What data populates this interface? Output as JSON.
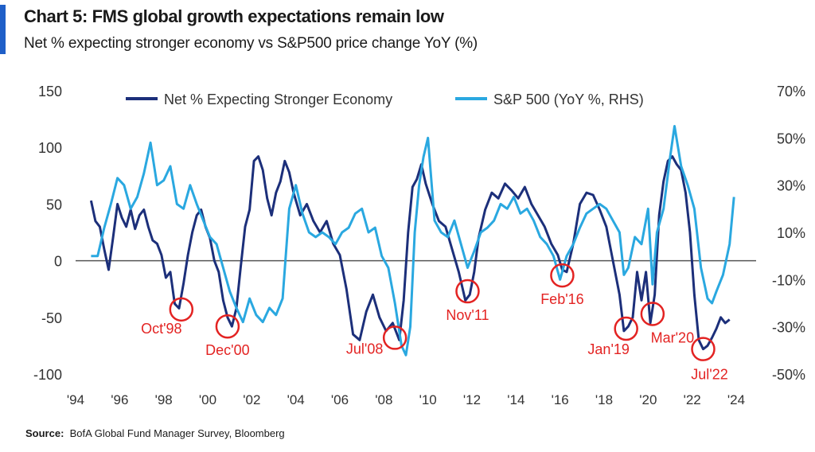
{
  "header": {
    "title": "Chart 5: FMS global growth expectations remain low",
    "subtitle": "Net % expecting stronger economy vs S&P500 price change YoY (%)"
  },
  "source": {
    "label": "Source:",
    "text": "BofA Global Fund Manager Survey, Bloomberg"
  },
  "colors": {
    "net_series": "#1c2f7a",
    "sp_series": "#2aa8e0",
    "annotation": "#e32322",
    "zero_line": "#555555",
    "accent": "#1f5fc8"
  },
  "chart_data": {
    "type": "line",
    "xlim": [
      1994,
      2024
    ],
    "x_tick_labels": [
      "'94",
      "'96",
      "'98",
      "'00",
      "'02",
      "'04",
      "'06",
      "'08",
      "'10",
      "'12",
      "'14",
      "'16",
      "'18",
      "'20",
      "'22",
      "'24"
    ],
    "x_tick_values": [
      1994,
      1996,
      1998,
      2000,
      2002,
      2004,
      2006,
      2008,
      2010,
      2012,
      2014,
      2016,
      2018,
      2020,
      2022,
      2024
    ],
    "left_axis": {
      "ylim": [
        -100,
        150
      ],
      "tick_labels": [
        "150",
        "100",
        "50",
        "0",
        "-50",
        "-100"
      ],
      "tick_values": [
        150,
        100,
        50,
        0,
        -50,
        -100
      ]
    },
    "right_axis": {
      "ylim": [
        -50,
        70
      ],
      "tick_labels": [
        "70%",
        "50%",
        "30%",
        "10%",
        "-10%",
        "-30%",
        "-50%"
      ],
      "tick_values": [
        70,
        50,
        30,
        10,
        -10,
        -30,
        -50
      ]
    },
    "legend": {
      "position": "top-center"
    },
    "series": [
      {
        "name": "Net % Expecting Stronger Economy",
        "axis": "left",
        "color": "#1c2f7a",
        "x": [
          1994.7,
          1994.9,
          1995.1,
          1995.3,
          1995.5,
          1995.7,
          1995.9,
          1996.1,
          1996.3,
          1996.5,
          1996.7,
          1996.9,
          1997.1,
          1997.3,
          1997.5,
          1997.7,
          1997.9,
          1998.1,
          1998.3,
          1998.5,
          1998.7,
          1998.9,
          1999.1,
          1999.3,
          1999.5,
          1999.7,
          1999.9,
          2000.1,
          2000.3,
          2000.5,
          2000.7,
          2000.9,
          2001.1,
          2001.3,
          2001.5,
          2001.7,
          2001.9,
          2002.1,
          2002.3,
          2002.5,
          2002.7,
          2002.9,
          2003.1,
          2003.3,
          2003.5,
          2003.7,
          2003.9,
          2004.2,
          2004.5,
          2004.8,
          2005.1,
          2005.4,
          2005.7,
          2006.0,
          2006.3,
          2006.6,
          2006.9,
          2007.2,
          2007.5,
          2007.8,
          2008.1,
          2008.4,
          2008.7,
          2008.9,
          2009.1,
          2009.3,
          2009.5,
          2009.7,
          2009.9,
          2010.2,
          2010.5,
          2010.8,
          2011.1,
          2011.4,
          2011.7,
          2011.9,
          2012.1,
          2012.3,
          2012.6,
          2012.9,
          2013.2,
          2013.5,
          2013.8,
          2014.1,
          2014.4,
          2014.7,
          2015.0,
          2015.3,
          2015.6,
          2015.9,
          2016.1,
          2016.3,
          2016.6,
          2016.9,
          2017.2,
          2017.5,
          2017.8,
          2018.1,
          2018.4,
          2018.7,
          2018.9,
          2019.1,
          2019.3,
          2019.5,
          2019.7,
          2019.9,
          2020.1,
          2020.3,
          2020.5,
          2020.7,
          2020.9,
          2021.1,
          2021.3,
          2021.5,
          2021.7,
          2021.9,
          2022.1,
          2022.3,
          2022.5,
          2022.7,
          2022.9,
          2023.1,
          2023.3,
          2023.5,
          2023.7
        ],
        "y": [
          53,
          35,
          30,
          10,
          -8,
          20,
          50,
          38,
          30,
          45,
          28,
          40,
          45,
          30,
          18,
          15,
          5,
          -15,
          -10,
          -38,
          -42,
          -20,
          5,
          25,
          40,
          45,
          30,
          20,
          0,
          -10,
          -35,
          -50,
          -58,
          -42,
          -5,
          30,
          45,
          88,
          92,
          80,
          55,
          40,
          60,
          70,
          88,
          78,
          60,
          40,
          50,
          35,
          25,
          35,
          15,
          5,
          -25,
          -65,
          -70,
          -45,
          -30,
          -50,
          -62,
          -55,
          -70,
          -35,
          25,
          65,
          72,
          85,
          68,
          50,
          35,
          30,
          10,
          -10,
          -35,
          -30,
          -10,
          20,
          45,
          60,
          55,
          68,
          62,
          55,
          65,
          50,
          40,
          30,
          15,
          5,
          -8,
          -10,
          15,
          50,
          60,
          58,
          45,
          30,
          0,
          -30,
          -62,
          -58,
          -50,
          -10,
          -35,
          -10,
          -55,
          -30,
          40,
          70,
          88,
          92,
          85,
          80,
          60,
          25,
          -30,
          -70,
          -78,
          -75,
          -68,
          -60,
          -50,
          -55,
          -52
        ]
      },
      {
        "name": "S&P 500 (YoY %, RHS)",
        "axis": "right",
        "color": "#2aa8e0",
        "x": [
          1994.7,
          1995.0,
          1995.3,
          1995.6,
          1995.9,
          1996.2,
          1996.5,
          1996.8,
          1997.1,
          1997.4,
          1997.7,
          1998.0,
          1998.3,
          1998.6,
          1998.9,
          1999.2,
          1999.5,
          1999.8,
          2000.1,
          2000.4,
          2000.7,
          2001.0,
          2001.3,
          2001.6,
          2001.9,
          2002.2,
          2002.5,
          2002.8,
          2003.1,
          2003.4,
          2003.7,
          2004.0,
          2004.3,
          2004.6,
          2004.9,
          2005.2,
          2005.5,
          2005.8,
          2006.1,
          2006.4,
          2006.7,
          2007.0,
          2007.3,
          2007.6,
          2007.9,
          2008.2,
          2008.5,
          2008.8,
          2009.0,
          2009.2,
          2009.4,
          2009.6,
          2009.8,
          2010.0,
          2010.3,
          2010.6,
          2010.9,
          2011.2,
          2011.5,
          2011.8,
          2012.1,
          2012.4,
          2012.7,
          2013.0,
          2013.3,
          2013.6,
          2013.9,
          2014.2,
          2014.5,
          2014.8,
          2015.1,
          2015.4,
          2015.7,
          2016.0,
          2016.3,
          2016.6,
          2016.9,
          2017.2,
          2017.5,
          2017.8,
          2018.1,
          2018.4,
          2018.7,
          2018.9,
          2019.1,
          2019.4,
          2019.7,
          2020.0,
          2020.2,
          2020.4,
          2020.7,
          2021.0,
          2021.2,
          2021.5,
          2021.8,
          2022.1,
          2022.4,
          2022.7,
          2022.9,
          2023.1,
          2023.4,
          2023.7,
          2023.9
        ],
        "y": [
          0,
          0,
          12,
          22,
          33,
          30,
          20,
          25,
          35,
          48,
          30,
          32,
          38,
          22,
          20,
          30,
          22,
          15,
          8,
          5,
          -5,
          -15,
          -22,
          -28,
          -18,
          -25,
          -28,
          -22,
          -25,
          -18,
          20,
          30,
          18,
          10,
          8,
          10,
          8,
          5,
          10,
          12,
          18,
          20,
          10,
          12,
          0,
          -5,
          -20,
          -38,
          -42,
          -30,
          10,
          30,
          42,
          50,
          15,
          10,
          8,
          15,
          5,
          -5,
          2,
          10,
          12,
          15,
          22,
          20,
          25,
          18,
          20,
          15,
          8,
          5,
          0,
          -10,
          0,
          5,
          12,
          18,
          20,
          22,
          20,
          15,
          10,
          -8,
          -5,
          8,
          5,
          20,
          -12,
          10,
          20,
          42,
          55,
          38,
          30,
          20,
          -5,
          -18,
          -20,
          -15,
          -8,
          5,
          25
        ]
      }
    ],
    "annotations": [
      {
        "label": "Oct'98",
        "x": 1998.8,
        "y": -43
      },
      {
        "label": "Dec'00",
        "x": 2000.9,
        "y": -58
      },
      {
        "label": "Jul'08",
        "x": 2008.5,
        "y": -68
      },
      {
        "label": "Nov'11",
        "x": 2011.8,
        "y": -27
      },
      {
        "label": "Feb'16",
        "x": 2016.1,
        "y": -13
      },
      {
        "label": "Jan'19",
        "x": 2019.0,
        "y": -60
      },
      {
        "label": "Mar'20",
        "x": 2020.2,
        "y": -47
      },
      {
        "label": "Jul'22",
        "x": 2022.5,
        "y": -78
      }
    ]
  }
}
